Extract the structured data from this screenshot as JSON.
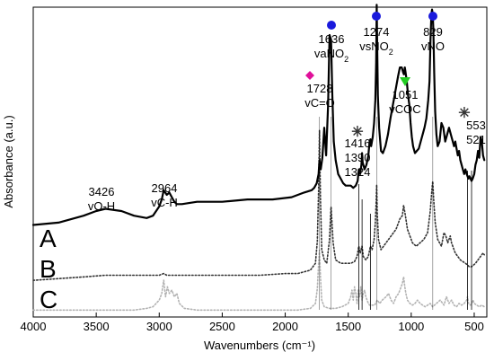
{
  "chart_data": {
    "type": "line",
    "xlabel": "Wavenumbers (cm⁻¹)",
    "ylabel": "Absorbance (a.u.)",
    "xlim": [
      4000,
      400
    ],
    "x_reversed": true,
    "x_ticks": [
      4000,
      3500,
      3000,
      2500,
      2000,
      1500,
      1000,
      500
    ],
    "y_ticks_shown": false,
    "grid": false,
    "series": [
      {
        "name": "A",
        "style": "solid",
        "color": "#000000",
        "x": [
          4000,
          3800,
          3600,
          3500,
          3426,
          3300,
          3200,
          3100,
          3050,
          3000,
          2980,
          2964,
          2940,
          2920,
          2900,
          2880,
          2860,
          2820,
          2700,
          2500,
          2300,
          2100,
          1950,
          1850,
          1790,
          1770,
          1750,
          1735,
          1728,
          1718,
          1705,
          1690,
          1675,
          1660,
          1648,
          1636,
          1626,
          1615,
          1600,
          1580,
          1560,
          1540,
          1520,
          1500,
          1480,
          1460,
          1440,
          1425,
          1416,
          1405,
          1395,
          1390,
          1385,
          1370,
          1355,
          1340,
          1330,
          1324,
          1318,
          1305,
          1295,
          1285,
          1278,
          1274,
          1270,
          1265,
          1255,
          1240,
          1225,
          1205,
          1185,
          1165,
          1145,
          1125,
          1105,
          1090,
          1075,
          1065,
          1058,
          1051,
          1045,
          1035,
          1025,
          1015,
          1005,
          995,
          985,
          970,
          955,
          940,
          925,
          910,
          895,
          880,
          865,
          855,
          847,
          840,
          835,
          829,
          824,
          818,
          810,
          800,
          790,
          775,
          760,
          745,
          730,
          715,
          700,
          690,
          680,
          670,
          660,
          650,
          640,
          630,
          620,
          610,
          600,
          590,
          580,
          570,
          560,
          553,
          546,
          538,
          530,
          521,
          512,
          500,
          490,
          480,
          470,
          460,
          450,
          440,
          430,
          420
        ],
        "y": [
          0.06,
          0.07,
          0.1,
          0.12,
          0.13,
          0.12,
          0.1,
          0.09,
          0.1,
          0.14,
          0.17,
          0.21,
          0.19,
          0.2,
          0.18,
          0.16,
          0.15,
          0.15,
          0.16,
          0.16,
          0.17,
          0.17,
          0.18,
          0.2,
          0.21,
          0.22,
          0.24,
          0.28,
          0.34,
          0.3,
          0.35,
          0.48,
          0.36,
          0.58,
          0.88,
          0.86,
          0.62,
          0.42,
          0.34,
          0.28,
          0.26,
          0.24,
          0.23,
          0.23,
          0.23,
          0.22,
          0.23,
          0.25,
          0.3,
          0.28,
          0.32,
          0.37,
          0.33,
          0.3,
          0.32,
          0.36,
          0.42,
          0.43,
          0.4,
          0.44,
          0.5,
          0.6,
          0.76,
          1.01,
          0.82,
          0.62,
          0.48,
          0.38,
          0.37,
          0.4,
          0.45,
          0.52,
          0.58,
          0.64,
          0.7,
          0.74,
          0.74,
          0.72,
          0.71,
          0.74,
          0.72,
          0.68,
          0.62,
          0.58,
          0.5,
          0.44,
          0.4,
          0.37,
          0.38,
          0.39,
          0.42,
          0.45,
          0.48,
          0.52,
          0.6,
          0.68,
          0.86,
          0.97,
          0.99,
          0.97,
          0.9,
          0.72,
          0.55,
          0.45,
          0.4,
          0.42,
          0.5,
          0.48,
          0.42,
          0.45,
          0.48,
          0.46,
          0.44,
          0.42,
          0.4,
          0.42,
          0.39,
          0.36,
          0.38,
          0.34,
          0.32,
          0.3,
          0.28,
          0.3,
          0.28,
          0.27,
          0.26,
          0.27,
          0.26,
          0.25,
          0.26,
          0.28,
          0.32,
          0.34,
          0.38,
          0.35,
          0.44,
          0.42,
          0.36,
          0.34
        ]
      },
      {
        "name": "B",
        "style": "dotted",
        "color": "#333333",
        "x": [
          4000,
          3800,
          3600,
          3426,
          3200,
          3000,
          2964,
          2940,
          2900,
          2800,
          2600,
          2400,
          2200,
          2000,
          1900,
          1800,
          1760,
          1745,
          1735,
          1728,
          1720,
          1710,
          1690,
          1670,
          1650,
          1636,
          1620,
          1600,
          1560,
          1520,
          1480,
          1450,
          1430,
          1416,
          1405,
          1390,
          1380,
          1360,
          1340,
          1324,
          1310,
          1295,
          1285,
          1278,
          1274,
          1270,
          1260,
          1240,
          1200,
          1160,
          1120,
          1090,
          1070,
          1060,
          1051,
          1042,
          1030,
          1010,
          990,
          960,
          930,
          900,
          870,
          850,
          835,
          829,
          822,
          810,
          790,
          760,
          740,
          725,
          710,
          700,
          690,
          680,
          670,
          650,
          630,
          610,
          590,
          570,
          553,
          540,
          521,
          505,
          490,
          470,
          450,
          430,
          420
        ],
        "y": [
          0.02,
          0.03,
          0.04,
          0.05,
          0.05,
          0.05,
          0.06,
          0.05,
          0.05,
          0.05,
          0.05,
          0.05,
          0.05,
          0.06,
          0.06,
          0.08,
          0.12,
          0.25,
          0.55,
          0.9,
          0.5,
          0.2,
          0.14,
          0.12,
          0.25,
          0.45,
          0.24,
          0.14,
          0.12,
          0.12,
          0.12,
          0.13,
          0.16,
          0.22,
          0.18,
          0.22,
          0.16,
          0.14,
          0.16,
          0.22,
          0.2,
          0.26,
          0.36,
          0.48,
          0.58,
          0.42,
          0.26,
          0.2,
          0.24,
          0.28,
          0.32,
          0.38,
          0.4,
          0.46,
          0.42,
          0.38,
          0.32,
          0.28,
          0.24,
          0.22,
          0.24,
          0.26,
          0.3,
          0.42,
          0.56,
          0.6,
          0.5,
          0.36,
          0.26,
          0.22,
          0.3,
          0.28,
          0.24,
          0.26,
          0.28,
          0.24,
          0.22,
          0.18,
          0.16,
          0.14,
          0.13,
          0.12,
          0.11,
          0.1,
          0.1,
          0.11,
          0.12,
          0.14,
          0.16,
          0.18,
          0.17
        ]
      },
      {
        "name": "C",
        "style": "dotted",
        "color": "#b3b3b3",
        "x": [
          4000,
          3800,
          3600,
          3400,
          3200,
          3100,
          3050,
          3000,
          2980,
          2964,
          2950,
          2935,
          2920,
          2900,
          2880,
          2860,
          2840,
          2800,
          2700,
          2500,
          2300,
          2100,
          1900,
          1800,
          1760,
          1745,
          1735,
          1728,
          1720,
          1710,
          1690,
          1650,
          1600,
          1550,
          1500,
          1480,
          1470,
          1460,
          1450,
          1440,
          1430,
          1420,
          1410,
          1400,
          1390,
          1380,
          1370,
          1360,
          1350,
          1340,
          1330,
          1310,
          1290,
          1270,
          1250,
          1230,
          1200,
          1180,
          1160,
          1140,
          1120,
          1100,
          1080,
          1070,
          1060,
          1051,
          1042,
          1030,
          1010,
          990,
          970,
          950,
          930,
          910,
          890,
          870,
          850,
          830,
          800,
          770,
          740,
          720,
          700,
          680,
          660,
          640,
          620,
          600,
          580,
          560,
          553,
          545,
          530,
          520,
          510,
          500,
          480,
          460,
          440,
          420
        ],
        "y": [
          0.02,
          0.02,
          0.02,
          0.02,
          0.02,
          0.03,
          0.04,
          0.08,
          0.12,
          0.2,
          0.1,
          0.16,
          0.12,
          0.14,
          0.1,
          0.12,
          0.06,
          0.03,
          0.02,
          0.02,
          0.02,
          0.02,
          0.02,
          0.03,
          0.06,
          0.15,
          0.3,
          0.38,
          0.22,
          0.08,
          0.04,
          0.03,
          0.03,
          0.04,
          0.06,
          0.1,
          0.14,
          0.08,
          0.16,
          0.12,
          0.06,
          0.14,
          0.1,
          0.16,
          0.08,
          0.12,
          0.14,
          0.1,
          0.08,
          0.06,
          0.05,
          0.05,
          0.05,
          0.08,
          0.06,
          0.08,
          0.1,
          0.12,
          0.08,
          0.06,
          0.1,
          0.12,
          0.16,
          0.18,
          0.22,
          0.16,
          0.12,
          0.08,
          0.06,
          0.05,
          0.06,
          0.08,
          0.06,
          0.05,
          0.04,
          0.05,
          0.06,
          0.04,
          0.06,
          0.08,
          0.05,
          0.1,
          0.06,
          0.08,
          0.05,
          0.04,
          0.06,
          0.05,
          0.06,
          0.08,
          0.1,
          0.06,
          0.05,
          0.06,
          0.08,
          0.06,
          0.05,
          0.04,
          0.05,
          0.04
        ]
      }
    ],
    "curve_labels": [
      {
        "text": "A",
        "series": "A"
      },
      {
        "text": "B",
        "series": "B"
      },
      {
        "text": "C",
        "series": "C"
      }
    ],
    "annotations": [
      {
        "lines": [
          "3426",
          "vO-H"
        ],
        "x": 3426
      },
      {
        "lines": [
          "2964",
          "vC-H"
        ],
        "x": 2964
      },
      {
        "lines": [
          "1728",
          "vC=O"
        ],
        "x": 1728,
        "marker": "diamond",
        "marker_color": "#e0109a"
      },
      {
        "lines": [
          "1636",
          "vaNO2"
        ],
        "x": 1636,
        "marker": "circle",
        "marker_color": "#1a1adc"
      },
      {
        "lines": [
          "1274",
          "vsNO2"
        ],
        "x": 1274,
        "marker": "circle",
        "marker_color": "#1a1adc"
      },
      {
        "lines": [
          "829",
          "vNO"
        ],
        "x": 829,
        "marker": "circle",
        "marker_color": "#1a1adc"
      },
      {
        "lines": [
          "1051",
          "vCOC"
        ],
        "x": 1051,
        "marker": "triangle",
        "marker_color": "#22cc22"
      },
      {
        "lines": [
          "1416",
          "1390",
          "1324"
        ],
        "x": 1390,
        "marker": "asterisk",
        "marker_color": "#333333"
      },
      {
        "lines": [
          "553",
          "521"
        ],
        "x": 537,
        "marker": "asterisk",
        "marker_color": "#333333"
      }
    ]
  }
}
